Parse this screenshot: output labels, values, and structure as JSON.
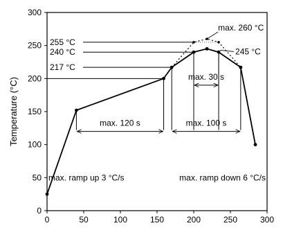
{
  "chart_data": {
    "type": "line",
    "title": "",
    "xlabel": "",
    "ylabel": "Temperature (°C)",
    "xlim": [
      0,
      300
    ],
    "ylim": [
      0,
      300
    ],
    "x_ticks": [
      0,
      50,
      100,
      150,
      200,
      250,
      300
    ],
    "y_ticks": [
      0,
      50,
      100,
      150,
      200,
      250,
      300
    ],
    "x_tick_labels": [
      "0",
      "50",
      "100",
      "150",
      "200",
      "250",
      "300"
    ],
    "y_tick_labels": [
      "0",
      "50",
      "100",
      "150",
      "200",
      "250",
      "300"
    ],
    "grid": false,
    "legend": "none",
    "series": [
      {
        "style": "solid",
        "points": [
          [
            0,
            25
          ],
          [
            40,
            152
          ],
          [
            159,
            200
          ],
          [
            170,
            217
          ],
          [
            200,
            240
          ],
          [
            218,
            245
          ],
          [
            234,
            240
          ],
          [
            264,
            217
          ],
          [
            284,
            100
          ]
        ]
      },
      {
        "style": "dotted",
        "points": [
          [
            170,
            217
          ],
          [
            200,
            255
          ],
          [
            218,
            260
          ],
          [
            234,
            255
          ],
          [
            264,
            217
          ]
        ]
      }
    ],
    "reference_levels": [
      {
        "y": 255,
        "label": "255 °C"
      },
      {
        "y": 240,
        "label": "240 °C"
      },
      {
        "y": 217,
        "label": "217 °C"
      },
      {
        "y": 200,
        "label": ""
      }
    ],
    "annotations": [
      {
        "text": "max. 260 °C",
        "x": 218,
        "y": 260
      },
      {
        "text": "245 °C",
        "x": 234,
        "y": 245
      }
    ],
    "intervals": [
      {
        "label": "max. 120 s",
        "x_from": 40,
        "x_to": 159,
        "y": 120
      },
      {
        "label": "max. 100 s",
        "x_from": 170,
        "x_to": 264,
        "y": 120
      },
      {
        "label": "max. 30 s",
        "x_from": 200,
        "x_to": 234,
        "y": 190
      }
    ],
    "notes": [
      "max. ramp up 3 °C/s",
      "max. ramp down 6 °C/s"
    ]
  }
}
